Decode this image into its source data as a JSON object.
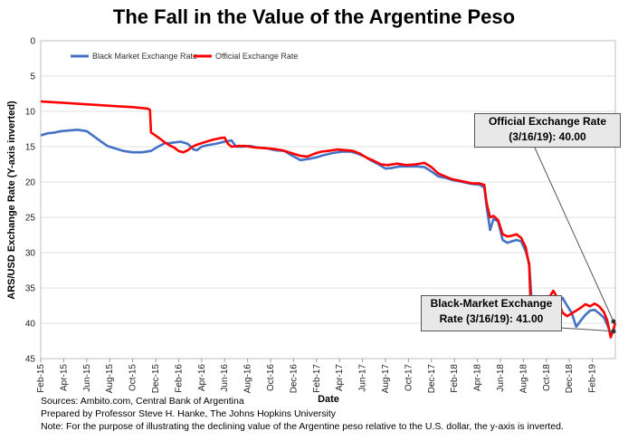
{
  "colors": {
    "black_market": "#4472c4",
    "official": "#ff0000"
  },
  "chart_data": {
    "type": "line",
    "title": "The Fall in the Value of the Argentine Peso",
    "xlabel": "Date",
    "ylabel": "ARS/USD Exchange  Rate (Y-axis inverted)",
    "ylim": [
      0,
      45
    ],
    "y_inverted": true,
    "yticks": [
      0,
      5,
      10,
      15,
      20,
      25,
      30,
      35,
      40,
      45
    ],
    "xlim_months": [
      0,
      50
    ],
    "xticks": [
      {
        "label": "Feb-15",
        "m": 0
      },
      {
        "label": "Apr-15",
        "m": 2
      },
      {
        "label": "Jun-15",
        "m": 4
      },
      {
        "label": "Aug-15",
        "m": 6
      },
      {
        "label": "Oct-15",
        "m": 8
      },
      {
        "label": "Dec-15",
        "m": 10
      },
      {
        "label": "Feb-16",
        "m": 12
      },
      {
        "label": "Apr-16",
        "m": 14
      },
      {
        "label": "Jun-16",
        "m": 16
      },
      {
        "label": "Aug-16",
        "m": 18
      },
      {
        "label": "Oct-16",
        "m": 20
      },
      {
        "label": "Dec-16",
        "m": 22
      },
      {
        "label": "Feb-17",
        "m": 24
      },
      {
        "label": "Apr-17",
        "m": 26
      },
      {
        "label": "Jun-17",
        "m": 28
      },
      {
        "label": "Aug-17",
        "m": 30
      },
      {
        "label": "Oct-17",
        "m": 32
      },
      {
        "label": "Dec-17",
        "m": 34
      },
      {
        "label": "Feb-18",
        "m": 36
      },
      {
        "label": "Apr-18",
        "m": 38
      },
      {
        "label": "Jun-18",
        "m": 40
      },
      {
        "label": "Aug-18",
        "m": 42
      },
      {
        "label": "Oct-18",
        "m": 44
      },
      {
        "label": "Dec-18",
        "m": 46
      },
      {
        "label": "Feb-19",
        "m": 48
      }
    ],
    "legend": [
      "Black Market Exchange Rate",
      "Official Exchange Rate"
    ],
    "series": [
      {
        "name": "Black Market Exchange Rate",
        "points": [
          [
            0,
            13.4
          ],
          [
            0.6,
            13.1
          ],
          [
            1.2,
            13.0
          ],
          [
            1.8,
            12.8
          ],
          [
            2.5,
            12.7
          ],
          [
            3.2,
            12.6
          ],
          [
            4.0,
            12.8
          ],
          [
            4.6,
            13.5
          ],
          [
            5.2,
            14.2
          ],
          [
            5.8,
            14.9
          ],
          [
            6.4,
            15.2
          ],
          [
            7.2,
            15.6
          ],
          [
            8.0,
            15.8
          ],
          [
            8.8,
            15.8
          ],
          [
            9.6,
            15.6
          ],
          [
            10.2,
            15.0
          ],
          [
            10.8,
            14.5
          ],
          [
            11.2,
            14.5
          ],
          [
            11.6,
            14.4
          ],
          [
            12.2,
            14.3
          ],
          [
            12.8,
            14.6
          ],
          [
            13.3,
            15.4
          ],
          [
            13.6,
            15.5
          ],
          [
            14.0,
            15.0
          ],
          [
            14.5,
            14.8
          ],
          [
            15.2,
            14.6
          ],
          [
            16.0,
            14.3
          ],
          [
            16.6,
            14.1
          ],
          [
            17.0,
            15.0
          ],
          [
            17.6,
            15.0
          ],
          [
            18.2,
            14.9
          ],
          [
            18.8,
            15.1
          ],
          [
            19.6,
            15.2
          ],
          [
            20.4,
            15.5
          ],
          [
            21.2,
            15.6
          ],
          [
            21.8,
            16.2
          ],
          [
            22.6,
            16.9
          ],
          [
            23.4,
            16.7
          ],
          [
            24.0,
            16.5
          ],
          [
            24.6,
            16.2
          ],
          [
            25.4,
            15.9
          ],
          [
            26.2,
            15.7
          ],
          [
            27.0,
            15.7
          ],
          [
            27.6,
            16.0
          ],
          [
            28.2,
            16.4
          ],
          [
            28.8,
            17.0
          ],
          [
            29.4,
            17.5
          ],
          [
            30.0,
            18.1
          ],
          [
            30.6,
            18.0
          ],
          [
            31.2,
            17.8
          ],
          [
            32.0,
            17.8
          ],
          [
            32.8,
            17.8
          ],
          [
            33.4,
            17.9
          ],
          [
            34.0,
            18.5
          ],
          [
            34.6,
            19.2
          ],
          [
            35.2,
            19.4
          ],
          [
            35.8,
            19.7
          ],
          [
            36.4,
            19.9
          ],
          [
            37.0,
            20.1
          ],
          [
            37.6,
            20.3
          ],
          [
            38.2,
            20.4
          ],
          [
            38.6,
            20.8
          ],
          [
            38.8,
            23.5
          ],
          [
            39.1,
            26.8
          ],
          [
            39.4,
            25.2
          ],
          [
            39.8,
            25.6
          ],
          [
            40.2,
            28.2
          ],
          [
            40.6,
            28.6
          ],
          [
            41.0,
            28.4
          ],
          [
            41.4,
            28.2
          ],
          [
            41.8,
            28.4
          ],
          [
            42.2,
            29.8
          ],
          [
            42.5,
            31.5
          ],
          [
            42.7,
            36.5
          ],
          [
            43.0,
            37.2
          ],
          [
            43.4,
            38.2
          ],
          [
            43.8,
            39.0
          ],
          [
            44.2,
            40.2
          ],
          [
            44.6,
            39.0
          ],
          [
            45.0,
            37.2
          ],
          [
            45.4,
            36.4
          ],
          [
            45.8,
            37.5
          ],
          [
            46.2,
            38.5
          ],
          [
            46.6,
            40.5
          ],
          [
            47.0,
            39.6
          ],
          [
            47.4,
            38.8
          ],
          [
            47.8,
            38.2
          ],
          [
            48.2,
            38.1
          ],
          [
            48.6,
            38.6
          ],
          [
            49.0,
            39.2
          ],
          [
            49.3,
            40.2
          ],
          [
            49.6,
            41.5
          ],
          [
            50.0,
            41.0
          ]
        ]
      },
      {
        "name": "Official Exchange Rate",
        "points": [
          [
            0,
            8.6
          ],
          [
            2,
            8.8
          ],
          [
            4,
            9.0
          ],
          [
            6,
            9.2
          ],
          [
            8,
            9.4
          ],
          [
            9.3,
            9.6
          ],
          [
            9.5,
            9.8
          ],
          [
            9.6,
            13.0
          ],
          [
            9.8,
            13.2
          ],
          [
            10.4,
            13.9
          ],
          [
            10.8,
            14.4
          ],
          [
            11.2,
            14.8
          ],
          [
            11.6,
            15.1
          ],
          [
            12.0,
            15.6
          ],
          [
            12.4,
            15.8
          ],
          [
            12.8,
            15.5
          ],
          [
            13.2,
            15.0
          ],
          [
            13.6,
            14.7
          ],
          [
            14.4,
            14.3
          ],
          [
            15.0,
            14.0
          ],
          [
            15.6,
            13.8
          ],
          [
            16.0,
            13.7
          ],
          [
            16.3,
            14.6
          ],
          [
            16.6,
            15.0
          ],
          [
            17.2,
            14.9
          ],
          [
            17.8,
            14.9
          ],
          [
            18.6,
            15.1
          ],
          [
            19.4,
            15.2
          ],
          [
            20.2,
            15.3
          ],
          [
            21.0,
            15.5
          ],
          [
            21.8,
            15.9
          ],
          [
            22.6,
            16.3
          ],
          [
            23.2,
            16.4
          ],
          [
            23.8,
            16.0
          ],
          [
            24.4,
            15.7
          ],
          [
            25.0,
            15.6
          ],
          [
            25.8,
            15.4
          ],
          [
            26.6,
            15.5
          ],
          [
            27.2,
            15.6
          ],
          [
            27.8,
            16.0
          ],
          [
            28.4,
            16.6
          ],
          [
            29.0,
            17.0
          ],
          [
            29.6,
            17.5
          ],
          [
            30.2,
            17.6
          ],
          [
            31.0,
            17.4
          ],
          [
            31.8,
            17.6
          ],
          [
            32.6,
            17.5
          ],
          [
            33.4,
            17.3
          ],
          [
            34.0,
            17.9
          ],
          [
            34.6,
            18.8
          ],
          [
            35.2,
            19.2
          ],
          [
            35.8,
            19.6
          ],
          [
            36.4,
            19.8
          ],
          [
            37.0,
            20.0
          ],
          [
            37.6,
            20.2
          ],
          [
            38.2,
            20.2
          ],
          [
            38.6,
            20.4
          ],
          [
            38.8,
            23.0
          ],
          [
            39.1,
            25.0
          ],
          [
            39.4,
            24.8
          ],
          [
            39.8,
            25.4
          ],
          [
            40.2,
            27.4
          ],
          [
            40.6,
            27.7
          ],
          [
            41.0,
            27.6
          ],
          [
            41.4,
            27.4
          ],
          [
            41.8,
            27.9
          ],
          [
            42.2,
            29.2
          ],
          [
            42.5,
            31.8
          ],
          [
            42.6,
            36.0
          ],
          [
            42.8,
            40.5
          ],
          [
            43.0,
            40.8
          ],
          [
            43.2,
            40.6
          ],
          [
            43.5,
            37.6
          ],
          [
            43.8,
            37.0
          ],
          [
            44.2,
            36.5
          ],
          [
            44.6,
            35.4
          ],
          [
            45.0,
            36.5
          ],
          [
            45.4,
            38.5
          ],
          [
            45.8,
            39.0
          ],
          [
            46.2,
            38.6
          ],
          [
            46.6,
            38.2
          ],
          [
            47.0,
            37.8
          ],
          [
            47.4,
            37.3
          ],
          [
            47.8,
            37.6
          ],
          [
            48.2,
            37.2
          ],
          [
            48.6,
            37.6
          ],
          [
            49.0,
            38.4
          ],
          [
            49.3,
            39.6
          ],
          [
            49.6,
            42.0
          ],
          [
            50.0,
            40.0
          ]
        ]
      }
    ],
    "annotations": [
      {
        "line1": "Official Exchange Rate",
        "line2": "(3/16/19): 40.00",
        "target_m": 50,
        "target_value": 40.0
      },
      {
        "line1": "Black-Market Exchange",
        "line2": "Rate (3/16/19): 41.00",
        "target_m": 50,
        "target_value": 41.0
      }
    ]
  },
  "footer": {
    "line1": "Sources: Ambito.com, Central Bank of Argentina",
    "line2": "Prepared by Professor Steve H. Hanke, The Johns Hopkins University",
    "line3": "Note: For the purpose of illustrating the declining value of the Argentine peso relative to the U.S. dollar, the y-axis is inverted."
  }
}
